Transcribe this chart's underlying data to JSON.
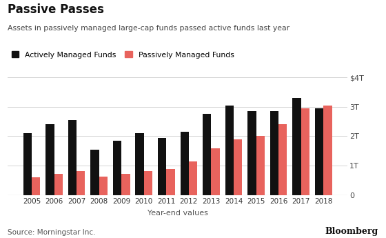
{
  "title": "Passive Passes",
  "subtitle": "Assets in passively managed large-cap funds passed active funds last year",
  "xlabel": "Year-end values",
  "source": "Source: Morningstar Inc.",
  "years": [
    2005,
    2006,
    2007,
    2008,
    2009,
    2010,
    2011,
    2012,
    2013,
    2014,
    2015,
    2016,
    2017,
    2018
  ],
  "active": [
    2.1,
    2.4,
    2.55,
    1.55,
    1.85,
    2.1,
    1.95,
    2.15,
    2.75,
    3.05,
    2.85,
    2.85,
    3.3,
    2.95
  ],
  "passive": [
    0.6,
    0.72,
    0.82,
    0.62,
    0.72,
    0.82,
    0.88,
    1.15,
    1.6,
    1.9,
    2.0,
    2.4,
    2.95,
    3.05
  ],
  "active_color": "#111111",
  "passive_color": "#e8635d",
  "background_color": "#ffffff",
  "legend_active": "Actively Managed Funds",
  "legend_passive": "Passively Managed Funds",
  "yticks": [
    0,
    1,
    2,
    3,
    4
  ],
  "ytick_labels": [
    "0",
    "1T",
    "2T",
    "3T",
    "$4T"
  ],
  "ylim": [
    0,
    4.2
  ],
  "bar_width": 0.38
}
